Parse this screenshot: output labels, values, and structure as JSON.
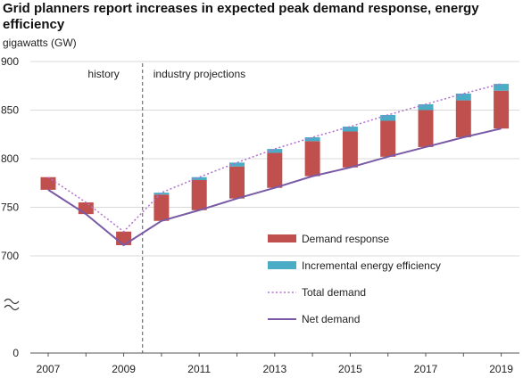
{
  "chart_data": {
    "type": "bar",
    "title": "Grid planners report increases in expected peak demand response, energy efficiency",
    "ylabel": "gigawatts (GW)",
    "xlabel": "",
    "ylim": [
      0,
      900
    ],
    "axis_break": {
      "from": 0,
      "to": 700
    },
    "y_ticks": [
      0,
      700,
      750,
      800,
      850,
      900
    ],
    "x_ticks": [
      "2007",
      "2009",
      "2011",
      "2013",
      "2015",
      "2017",
      "2019"
    ],
    "years": [
      2007,
      2008,
      2009,
      2010,
      2011,
      2012,
      2013,
      2014,
      2015,
      2016,
      2017,
      2018,
      2019
    ],
    "annotations": {
      "history": "history",
      "projections": "industry projections",
      "divider_after_year": 2009
    },
    "grid": "horizontal",
    "legend_position": "right",
    "series": [
      {
        "name": "Net demand",
        "type": "line",
        "color": "#7a5aa6",
        "values": [
          768,
          743,
          711,
          736,
          747,
          759,
          770,
          782,
          791,
          802,
          812,
          822,
          831
        ]
      },
      {
        "name": "Demand response",
        "type": "stacked-bar",
        "color": "#c0504d",
        "values": [
          13,
          12,
          14,
          27,
          31,
          33,
          36,
          36,
          37,
          37,
          38,
          38,
          39
        ]
      },
      {
        "name": "Incremental energy efficiency",
        "type": "stacked-bar",
        "color": "#4bacc6",
        "values": [
          0,
          0,
          0,
          2,
          3,
          4,
          4,
          4,
          5,
          6,
          6,
          7,
          7
        ]
      },
      {
        "name": "Total demand",
        "type": "dotted-line",
        "color": "#b070d0",
        "values": [
          781,
          755,
          725,
          765,
          781,
          796,
          810,
          822,
          833,
          845,
          856,
          867,
          877
        ]
      }
    ]
  },
  "legend": [
    {
      "key": "demand_response",
      "label": "Demand response",
      "color": "#c0504d"
    },
    {
      "key": "efficiency",
      "label": "Incremental energy efficiency",
      "color": "#4bacc6"
    },
    {
      "key": "total",
      "label": "Total demand",
      "color": "#b070d0"
    },
    {
      "key": "net",
      "label": "Net demand",
      "color": "#7a5aa6"
    }
  ]
}
